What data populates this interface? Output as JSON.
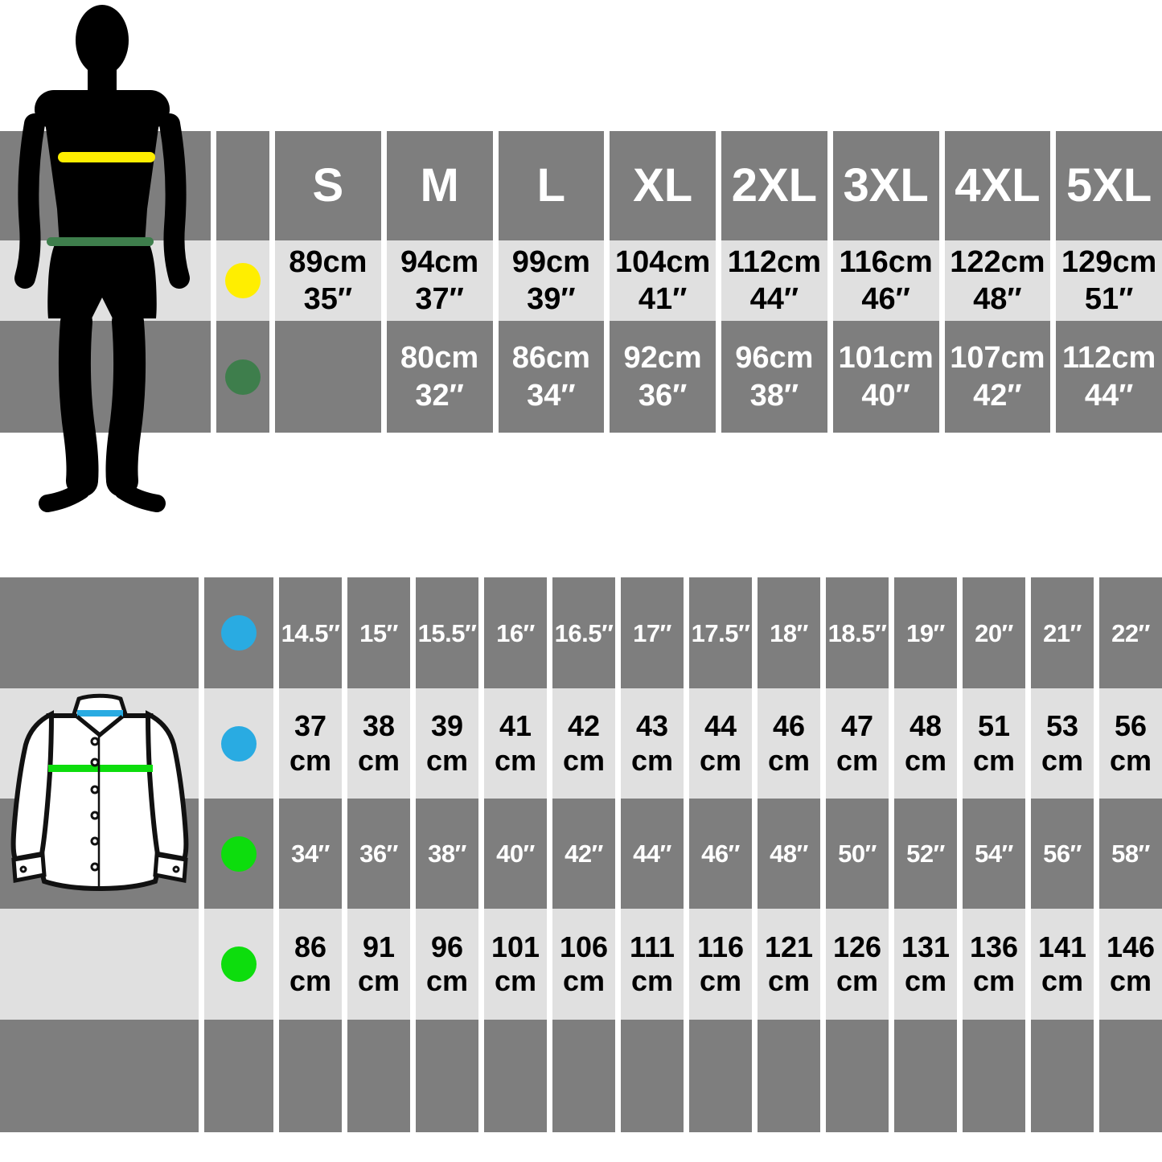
{
  "palette": {
    "row_dark": "#7e7e7e",
    "row_light": "#e0e0e0",
    "background": "#ffffff",
    "silhouette_black": "#000000",
    "chest_marker_yellow": "#ffee00",
    "waist_marker_green": "#3e7e4c",
    "collar_marker_blue": "#29abe2",
    "shirt_chest_marker_green": "#0ddd0d"
  },
  "top_table": {
    "sizes": [
      "S",
      "M",
      "L",
      "XL",
      "2XL",
      "3XL",
      "4XL",
      "5XL"
    ],
    "chest_cells": [
      "89cm\n35″",
      "94cm\n37″",
      "99cm\n39″",
      "104cm\n41″",
      "112cm\n44″",
      "116cm\n46″",
      "122cm\n48″",
      "129cm\n51″"
    ],
    "waist_cells": [
      "",
      "80cm\n32″",
      "86cm\n34″",
      "92cm\n36″",
      "96cm\n38″",
      "101cm\n40″",
      "107cm\n42″",
      "112cm\n44″"
    ]
  },
  "bottom_table": {
    "collar_in_cells": [
      "14.5″",
      "15″",
      "15.5″",
      "16″",
      "16.5″",
      "17″",
      "17.5″",
      "18″",
      "18.5″",
      "19″",
      "20″",
      "21″",
      "22″"
    ],
    "collar_cm_cells": [
      "37\ncm",
      "38\ncm",
      "39\ncm",
      "41\ncm",
      "42\ncm",
      "43\ncm",
      "44\ncm",
      "46\ncm",
      "47\ncm",
      "48\ncm",
      "51\ncm",
      "53\ncm",
      "56\ncm"
    ],
    "chest_in_cells": [
      "34″",
      "36″",
      "38″",
      "40″",
      "42″",
      "44″",
      "46″",
      "48″",
      "50″",
      "52″",
      "54″",
      "56″",
      "58″"
    ],
    "chest_cm_cells": [
      "86\ncm",
      "91\ncm",
      "96\ncm",
      "101\ncm",
      "106\ncm",
      "111\ncm",
      "116\ncm",
      "121\ncm",
      "126\ncm",
      "131\ncm",
      "136\ncm",
      "141\ncm",
      "146\ncm"
    ]
  },
  "chart_data": [
    {
      "type": "table",
      "title": "Body size chart (chest / waist by garment size)",
      "columns": [
        "S",
        "M",
        "L",
        "XL",
        "2XL",
        "3XL",
        "4XL",
        "5XL"
      ],
      "rows": [
        {
          "label": "chest (yellow marker)",
          "values_cm": [
            89,
            94,
            99,
            104,
            112,
            116,
            122,
            129
          ],
          "values_in": [
            35,
            37,
            39,
            41,
            44,
            46,
            48,
            51
          ]
        },
        {
          "label": "waist (dark-green marker)",
          "values_cm": [
            null,
            80,
            86,
            92,
            96,
            101,
            107,
            112
          ],
          "values_in": [
            null,
            32,
            34,
            36,
            38,
            40,
            42,
            44
          ]
        }
      ]
    },
    {
      "type": "table",
      "title": "Shirt size chart (collar / chest)",
      "rows": [
        {
          "label": "collar (blue marker)",
          "unit": "in",
          "values": [
            14.5,
            15,
            15.5,
            16,
            16.5,
            17,
            17.5,
            18,
            18.5,
            19,
            20,
            21,
            22
          ]
        },
        {
          "label": "collar (blue marker)",
          "unit": "cm",
          "values": [
            37,
            38,
            39,
            41,
            42,
            43,
            44,
            46,
            47,
            48,
            51,
            53,
            56
          ]
        },
        {
          "label": "chest (green marker)",
          "unit": "in",
          "values": [
            34,
            36,
            38,
            40,
            42,
            44,
            46,
            48,
            50,
            52,
            54,
            56,
            58
          ]
        },
        {
          "label": "chest (green marker)",
          "unit": "cm",
          "values": [
            86,
            91,
            96,
            101,
            106,
            111,
            116,
            121,
            126,
            131,
            136,
            141,
            146
          ]
        }
      ]
    }
  ]
}
